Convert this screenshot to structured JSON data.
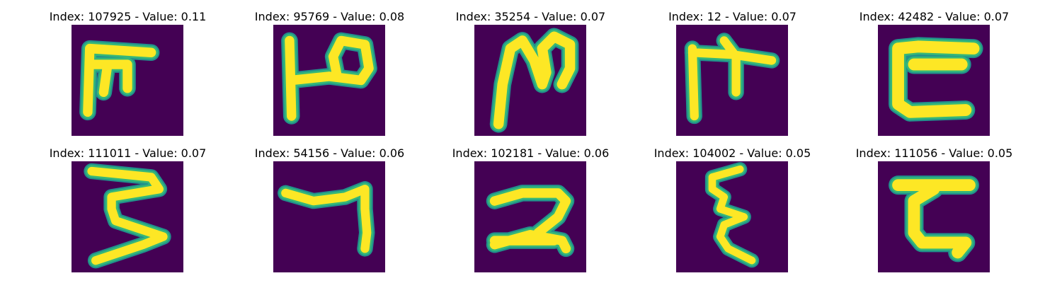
{
  "cells": [
    {
      "caption": "Index: 107925 - Value: 0.11",
      "glyph": "glyph-1"
    },
    {
      "caption": "Index: 95769 - Value: 0.08",
      "glyph": "glyph-2"
    },
    {
      "caption": "Index: 35254 - Value: 0.07",
      "glyph": "glyph-3"
    },
    {
      "caption": "Index: 12 - Value: 0.07",
      "glyph": "glyph-4"
    },
    {
      "caption": "Index: 42482 - Value: 0.07",
      "glyph": "glyph-5"
    },
    {
      "caption": "Index: 111011 - Value: 0.07",
      "glyph": "glyph-6"
    },
    {
      "caption": "Index: 54156 - Value: 0.06",
      "glyph": "glyph-7"
    },
    {
      "caption": "Index: 102181 - Value: 0.06",
      "glyph": "glyph-8"
    },
    {
      "caption": "Index: 104002 - Value: 0.05",
      "glyph": "glyph-9"
    },
    {
      "caption": "Index: 111056 - Value: 0.05",
      "glyph": "glyph-10"
    }
  ],
  "colors": {
    "background": "#440154",
    "stroke_core": "#fde725",
    "stroke_edge": "#35b779",
    "stroke_halo": "#21918c"
  }
}
